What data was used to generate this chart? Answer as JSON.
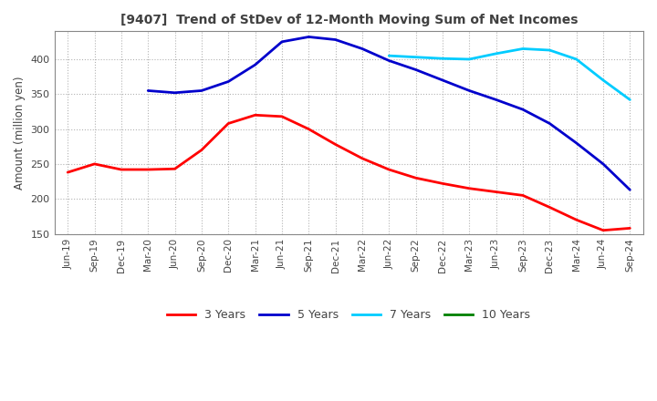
{
  "title": "[9407]  Trend of StDev of 12-Month Moving Sum of Net Incomes",
  "ylabel": "Amount (million yen)",
  "ylim": [
    150,
    440
  ],
  "yticks": [
    150,
    200,
    250,
    300,
    350,
    400
  ],
  "background_color": "#ffffff",
  "plot_bg_color": "#ffffff",
  "grid_color": "#aaaaaa",
  "x_labels": [
    "Jun-19",
    "Sep-19",
    "Dec-19",
    "Mar-20",
    "Jun-20",
    "Sep-20",
    "Dec-20",
    "Mar-21",
    "Jun-21",
    "Sep-21",
    "Dec-21",
    "Mar-22",
    "Jun-22",
    "Sep-22",
    "Dec-22",
    "Mar-23",
    "Jun-23",
    "Sep-23",
    "Dec-23",
    "Mar-24",
    "Jun-24",
    "Sep-24"
  ],
  "series": {
    "3 Years": {
      "color": "#ff0000",
      "values": [
        238,
        250,
        242,
        242,
        243,
        270,
        308,
        320,
        318,
        300,
        278,
        258,
        242,
        230,
        222,
        215,
        210,
        205,
        188,
        170,
        155,
        158
      ]
    },
    "5 Years": {
      "color": "#0000cc",
      "values": [
        null,
        null,
        null,
        355,
        352,
        355,
        368,
        392,
        425,
        432,
        428,
        415,
        398,
        385,
        370,
        355,
        342,
        328,
        308,
        280,
        250,
        213
      ]
    },
    "7 Years": {
      "color": "#00ccff",
      "values": [
        null,
        null,
        null,
        null,
        null,
        null,
        null,
        null,
        null,
        null,
        null,
        null,
        405,
        403,
        401,
        400,
        408,
        415,
        413,
        400,
        370,
        342
      ]
    },
    "10 Years": {
      "color": "#008000",
      "values": [
        null,
        null,
        null,
        null,
        null,
        null,
        null,
        null,
        null,
        null,
        null,
        null,
        null,
        null,
        null,
        null,
        null,
        null,
        null,
        null,
        null,
        null
      ]
    }
  },
  "legend_order": [
    "3 Years",
    "5 Years",
    "7 Years",
    "10 Years"
  ]
}
